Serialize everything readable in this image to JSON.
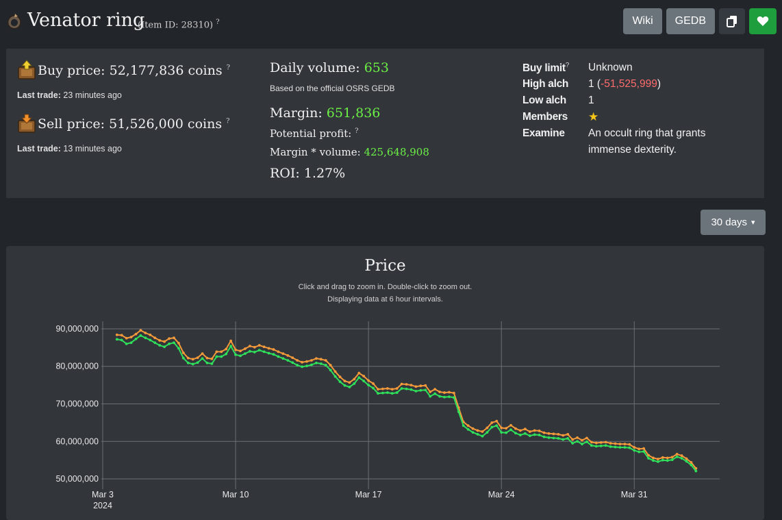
{
  "header": {
    "title": "Venator ring",
    "item_id": "(Item ID: 28310)",
    "help_mark": "?",
    "buttons": {
      "wiki": "Wiki",
      "gedb": "GEDB"
    }
  },
  "prices": {
    "buy_label": "Buy price: 52,177,836 coins",
    "buy_last_trade_label": "Last trade:",
    "buy_last_trade": "23 minutes ago",
    "sell_label": "Sell price: 51,526,000 coins",
    "sell_last_trade_label": "Last trade:",
    "sell_last_trade": "13 minutes ago"
  },
  "volume": {
    "daily_label": "Daily volume:",
    "daily_value": "653",
    "note": "Based on the official OSRS GEDB",
    "margin_label": "Margin:",
    "margin_value": "651,836",
    "profit_label": "Potential profit:",
    "mv_label": "Margin * volume:",
    "mv_value": "425,648,908",
    "roi": "ROI: 1.27%"
  },
  "details": {
    "buy_limit_label": "Buy limit",
    "buy_limit": "Unknown",
    "high_alch_label": "High alch",
    "high_alch": "1",
    "high_alch_paren_open": " (",
    "high_alch_diff": "-51,525,999",
    "high_alch_paren_close": ")",
    "low_alch_label": "Low alch",
    "low_alch": "1",
    "members_label": "Members",
    "members_star": "★",
    "examine_label": "Examine",
    "examine_line1": "An occult ring that grants",
    "examine_line2": "immense dexterity."
  },
  "range": {
    "label": "30 days",
    "caret": "▾"
  },
  "colors": {
    "buy": "#f59a3a",
    "sell": "#2fe05a",
    "grid": "#6c7076"
  },
  "chart_data": {
    "type": "line",
    "title": "Price",
    "subtitle_1": "Click and drag to zoom in. Double-click to zoom out.",
    "subtitle_2": "Displaying data at 6 hour intervals.",
    "x_ticks": [
      "Mar 3",
      "Mar 10",
      "Mar 17",
      "Mar 24",
      "Mar 31"
    ],
    "x_year": "2024",
    "x_tick_days": [
      0,
      7,
      14,
      21,
      28
    ],
    "x_range_days": [
      0,
      32.5
    ],
    "y_ticks": [
      "50,000,000",
      "60,000,000",
      "70,000,000",
      "80,000,000",
      "90,000,000"
    ],
    "y_tick_values": [
      50000000,
      60000000,
      70000000,
      80000000,
      90000000
    ],
    "ylim": [
      48000000,
      92000000
    ],
    "series": [
      {
        "name": "Buy price",
        "points": [
          [
            0.75,
            88.4
          ],
          [
            1.0,
            88.3
          ],
          [
            1.25,
            87.5
          ],
          [
            1.5,
            87.8
          ],
          [
            1.75,
            88.6
          ],
          [
            2.0,
            89.6
          ],
          [
            2.25,
            88.9
          ],
          [
            2.5,
            88.4
          ],
          [
            2.75,
            87.6
          ],
          [
            3.0,
            86.9
          ],
          [
            3.25,
            86.6
          ],
          [
            3.5,
            87.4
          ],
          [
            3.75,
            87.6
          ],
          [
            4.0,
            86.2
          ],
          [
            4.25,
            83.6
          ],
          [
            4.5,
            82.2
          ],
          [
            4.75,
            81.9
          ],
          [
            5.0,
            82.3
          ],
          [
            5.25,
            83.4
          ],
          [
            5.5,
            82.2
          ],
          [
            5.75,
            82.0
          ],
          [
            6.0,
            83.9
          ],
          [
            6.25,
            83.9
          ],
          [
            6.5,
            84.6
          ],
          [
            6.75,
            86.8
          ],
          [
            7.0,
            84.4
          ],
          [
            7.25,
            84.1
          ],
          [
            7.5,
            84.7
          ],
          [
            7.75,
            85.4
          ],
          [
            8.0,
            85.1
          ],
          [
            8.25,
            85.6
          ],
          [
            8.5,
            85.2
          ],
          [
            8.75,
            84.8
          ],
          [
            9.0,
            84.5
          ],
          [
            9.25,
            83.9
          ],
          [
            9.5,
            83.4
          ],
          [
            9.75,
            82.9
          ],
          [
            10.0,
            82.3
          ],
          [
            10.25,
            81.6
          ],
          [
            10.5,
            81.1
          ],
          [
            10.75,
            81.3
          ],
          [
            11.0,
            81.6
          ],
          [
            11.25,
            82.1
          ],
          [
            11.5,
            81.9
          ],
          [
            11.75,
            81.6
          ],
          [
            12.0,
            80.3
          ],
          [
            12.25,
            78.6
          ],
          [
            12.5,
            77.2
          ],
          [
            12.75,
            76.1
          ],
          [
            13.0,
            75.7
          ],
          [
            13.25,
            76.6
          ],
          [
            13.5,
            78.2
          ],
          [
            13.75,
            77.4
          ],
          [
            14.0,
            76.2
          ],
          [
            14.25,
            75.4
          ],
          [
            14.5,
            73.9
          ],
          [
            14.75,
            74.0
          ],
          [
            15.0,
            74.1
          ],
          [
            15.25,
            73.9
          ],
          [
            15.5,
            74.1
          ],
          [
            15.75,
            75.3
          ],
          [
            16.0,
            75.2
          ],
          [
            16.25,
            75.0
          ],
          [
            16.5,
            74.6
          ],
          [
            16.75,
            74.8
          ],
          [
            17.0,
            74.9
          ],
          [
            17.25,
            73.2
          ],
          [
            17.5,
            73.9
          ],
          [
            17.75,
            73.2
          ],
          [
            18.0,
            73.0
          ],
          [
            18.25,
            73.1
          ],
          [
            18.5,
            72.9
          ],
          [
            18.75,
            69.0
          ],
          [
            19.0,
            65.2
          ],
          [
            19.25,
            64.2
          ],
          [
            19.5,
            63.4
          ],
          [
            19.75,
            62.9
          ],
          [
            20.0,
            62.6
          ],
          [
            20.25,
            63.6
          ],
          [
            20.5,
            65.0
          ],
          [
            20.75,
            65.4
          ],
          [
            21.0,
            63.6
          ],
          [
            21.25,
            63.5
          ],
          [
            21.5,
            64.3
          ],
          [
            21.75,
            63.4
          ],
          [
            22.0,
            62.9
          ],
          [
            22.25,
            63.3
          ],
          [
            22.5,
            62.6
          ],
          [
            22.75,
            62.9
          ],
          [
            23.0,
            62.8
          ],
          [
            23.25,
            62.3
          ],
          [
            23.5,
            62.1
          ],
          [
            23.75,
            62.0
          ],
          [
            24.0,
            61.9
          ],
          [
            24.25,
            61.6
          ],
          [
            24.5,
            61.9
          ],
          [
            24.75,
            60.5
          ],
          [
            25.0,
            61.0
          ],
          [
            25.25,
            60.3
          ],
          [
            25.5,
            60.9
          ],
          [
            25.75,
            59.8
          ],
          [
            26.0,
            59.6
          ],
          [
            26.25,
            59.7
          ],
          [
            26.5,
            59.8
          ],
          [
            26.75,
            59.5
          ],
          [
            27.0,
            59.4
          ],
          [
            27.25,
            59.3
          ],
          [
            27.5,
            59.3
          ],
          [
            27.75,
            59.2
          ],
          [
            28.0,
            58.4
          ],
          [
            28.25,
            58.0
          ],
          [
            28.5,
            58.1
          ],
          [
            28.75,
            56.3
          ],
          [
            29.0,
            55.6
          ],
          [
            29.25,
            55.3
          ],
          [
            29.5,
            55.7
          ],
          [
            29.75,
            55.6
          ],
          [
            30.0,
            55.8
          ],
          [
            30.25,
            56.6
          ],
          [
            30.5,
            56.2
          ],
          [
            30.75,
            55.4
          ],
          [
            31.0,
            54.4
          ],
          [
            31.25,
            52.8
          ]
        ]
      },
      {
        "name": "Sell price",
        "points": [
          [
            0.75,
            87.2
          ],
          [
            1.0,
            87.0
          ],
          [
            1.25,
            86.0
          ],
          [
            1.5,
            86.3
          ],
          [
            1.75,
            87.3
          ],
          [
            2.0,
            88.2
          ],
          [
            2.25,
            87.6
          ],
          [
            2.5,
            87.0
          ],
          [
            2.75,
            86.3
          ],
          [
            3.0,
            85.6
          ],
          [
            3.25,
            85.2
          ],
          [
            3.5,
            86.0
          ],
          [
            3.75,
            86.3
          ],
          [
            4.0,
            84.8
          ],
          [
            4.25,
            82.2
          ],
          [
            4.5,
            80.9
          ],
          [
            4.75,
            80.6
          ],
          [
            5.0,
            81.0
          ],
          [
            5.25,
            82.1
          ],
          [
            5.5,
            80.9
          ],
          [
            5.75,
            80.7
          ],
          [
            6.0,
            82.6
          ],
          [
            6.25,
            82.6
          ],
          [
            6.5,
            83.3
          ],
          [
            6.75,
            85.4
          ],
          [
            7.0,
            83.1
          ],
          [
            7.25,
            82.8
          ],
          [
            7.5,
            83.4
          ],
          [
            7.75,
            84.0
          ],
          [
            8.0,
            83.8
          ],
          [
            8.25,
            84.3
          ],
          [
            8.5,
            83.9
          ],
          [
            8.75,
            83.5
          ],
          [
            9.0,
            83.2
          ],
          [
            9.25,
            82.6
          ],
          [
            9.5,
            82.1
          ],
          [
            9.75,
            81.6
          ],
          [
            10.0,
            81.0
          ],
          [
            10.25,
            80.3
          ],
          [
            10.5,
            79.9
          ],
          [
            10.75,
            80.1
          ],
          [
            11.0,
            80.4
          ],
          [
            11.25,
            80.9
          ],
          [
            11.5,
            80.7
          ],
          [
            11.75,
            80.3
          ],
          [
            12.0,
            79.0
          ],
          [
            12.25,
            77.3
          ],
          [
            12.5,
            75.9
          ],
          [
            12.75,
            74.9
          ],
          [
            13.0,
            74.5
          ],
          [
            13.25,
            75.4
          ],
          [
            13.5,
            77.0
          ],
          [
            13.75,
            76.1
          ],
          [
            14.0,
            75.0
          ],
          [
            14.25,
            74.2
          ],
          [
            14.5,
            72.8
          ],
          [
            14.75,
            72.9
          ],
          [
            15.0,
            73.0
          ],
          [
            15.25,
            72.8
          ],
          [
            15.5,
            73.0
          ],
          [
            15.75,
            74.1
          ],
          [
            16.0,
            74.0
          ],
          [
            16.25,
            73.8
          ],
          [
            16.5,
            73.4
          ],
          [
            16.75,
            73.6
          ],
          [
            17.0,
            73.7
          ],
          [
            17.25,
            72.0
          ],
          [
            17.5,
            72.7
          ],
          [
            17.75,
            72.0
          ],
          [
            18.0,
            71.8
          ],
          [
            18.25,
            71.9
          ],
          [
            18.5,
            71.7
          ],
          [
            18.75,
            67.9
          ],
          [
            19.0,
            64.2
          ],
          [
            19.25,
            63.2
          ],
          [
            19.5,
            62.4
          ],
          [
            19.75,
            61.9
          ],
          [
            20.0,
            61.4
          ],
          [
            20.25,
            62.4
          ],
          [
            20.5,
            63.8
          ],
          [
            20.75,
            64.2
          ],
          [
            21.0,
            62.4
          ],
          [
            21.25,
            62.3
          ],
          [
            21.5,
            63.1
          ],
          [
            21.75,
            62.2
          ],
          [
            22.0,
            61.7
          ],
          [
            22.25,
            62.1
          ],
          [
            22.5,
            61.5
          ],
          [
            22.75,
            61.8
          ],
          [
            23.0,
            61.7
          ],
          [
            23.25,
            61.2
          ],
          [
            23.5,
            61.0
          ],
          [
            23.75,
            60.9
          ],
          [
            24.0,
            60.8
          ],
          [
            24.25,
            60.5
          ],
          [
            24.5,
            60.8
          ],
          [
            24.75,
            59.5
          ],
          [
            25.0,
            60.0
          ],
          [
            25.25,
            59.3
          ],
          [
            25.5,
            59.9
          ],
          [
            25.75,
            58.9
          ],
          [
            26.0,
            58.7
          ],
          [
            26.25,
            58.8
          ],
          [
            26.5,
            58.9
          ],
          [
            26.75,
            58.6
          ],
          [
            27.0,
            58.5
          ],
          [
            27.25,
            58.4
          ],
          [
            27.5,
            58.4
          ],
          [
            27.75,
            58.3
          ],
          [
            28.0,
            57.6
          ],
          [
            28.25,
            57.2
          ],
          [
            28.5,
            57.3
          ],
          [
            28.75,
            55.5
          ],
          [
            29.0,
            54.9
          ],
          [
            29.25,
            54.6
          ],
          [
            29.5,
            55.0
          ],
          [
            29.75,
            54.9
          ],
          [
            30.0,
            55.1
          ],
          [
            30.25,
            55.9
          ],
          [
            30.5,
            55.5
          ],
          [
            30.75,
            54.7
          ],
          [
            31.0,
            53.7
          ],
          [
            31.25,
            52.1
          ]
        ]
      }
    ]
  }
}
